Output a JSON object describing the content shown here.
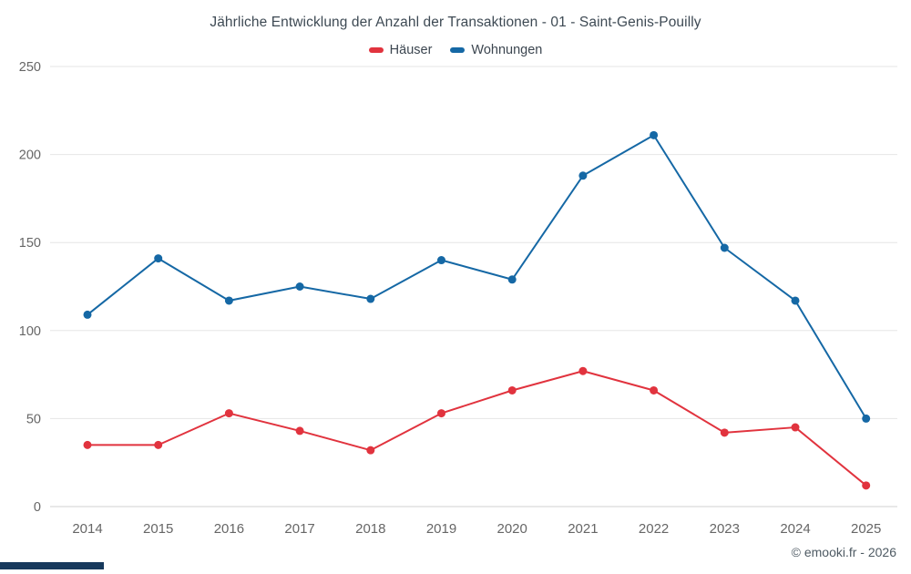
{
  "title": "Jährliche Entwicklung der Anzahl der Transaktionen - 01 - Saint-Genis-Pouilly",
  "legend": {
    "items": [
      {
        "label": "Häuser",
        "color": "#e1333e"
      },
      {
        "label": "Wohnungen",
        "color": "#1568a5"
      }
    ]
  },
  "footer": {
    "copyright": "© emooki.fr - 2026"
  },
  "colors": {
    "grid": "#e6e6e6",
    "axis_line": "#d0d0d0",
    "tick_label": "#666666",
    "bottom_bar": "#17395c"
  },
  "chart_data": {
    "type": "line",
    "title": "Jährliche Entwicklung der Anzahl der Transaktionen - 01 - Saint-Genis-Pouilly",
    "categories": [
      "2014",
      "2015",
      "2016",
      "2017",
      "2018",
      "2019",
      "2020",
      "2021",
      "2022",
      "2023",
      "2024",
      "2025"
    ],
    "series": [
      {
        "name": "Häuser",
        "color": "#e1333e",
        "values": [
          35,
          35,
          53,
          43,
          32,
          53,
          66,
          77,
          66,
          42,
          45,
          12
        ]
      },
      {
        "name": "Wohnungen",
        "color": "#1568a5",
        "values": [
          109,
          141,
          117,
          125,
          118,
          140,
          129,
          188,
          211,
          147,
          117,
          50
        ]
      }
    ],
    "xlabel": "",
    "ylabel": "",
    "ylim": [
      0,
      250
    ],
    "yticks": [
      0,
      50,
      100,
      150,
      200,
      250
    ],
    "grid": true,
    "legend_position": "top"
  }
}
